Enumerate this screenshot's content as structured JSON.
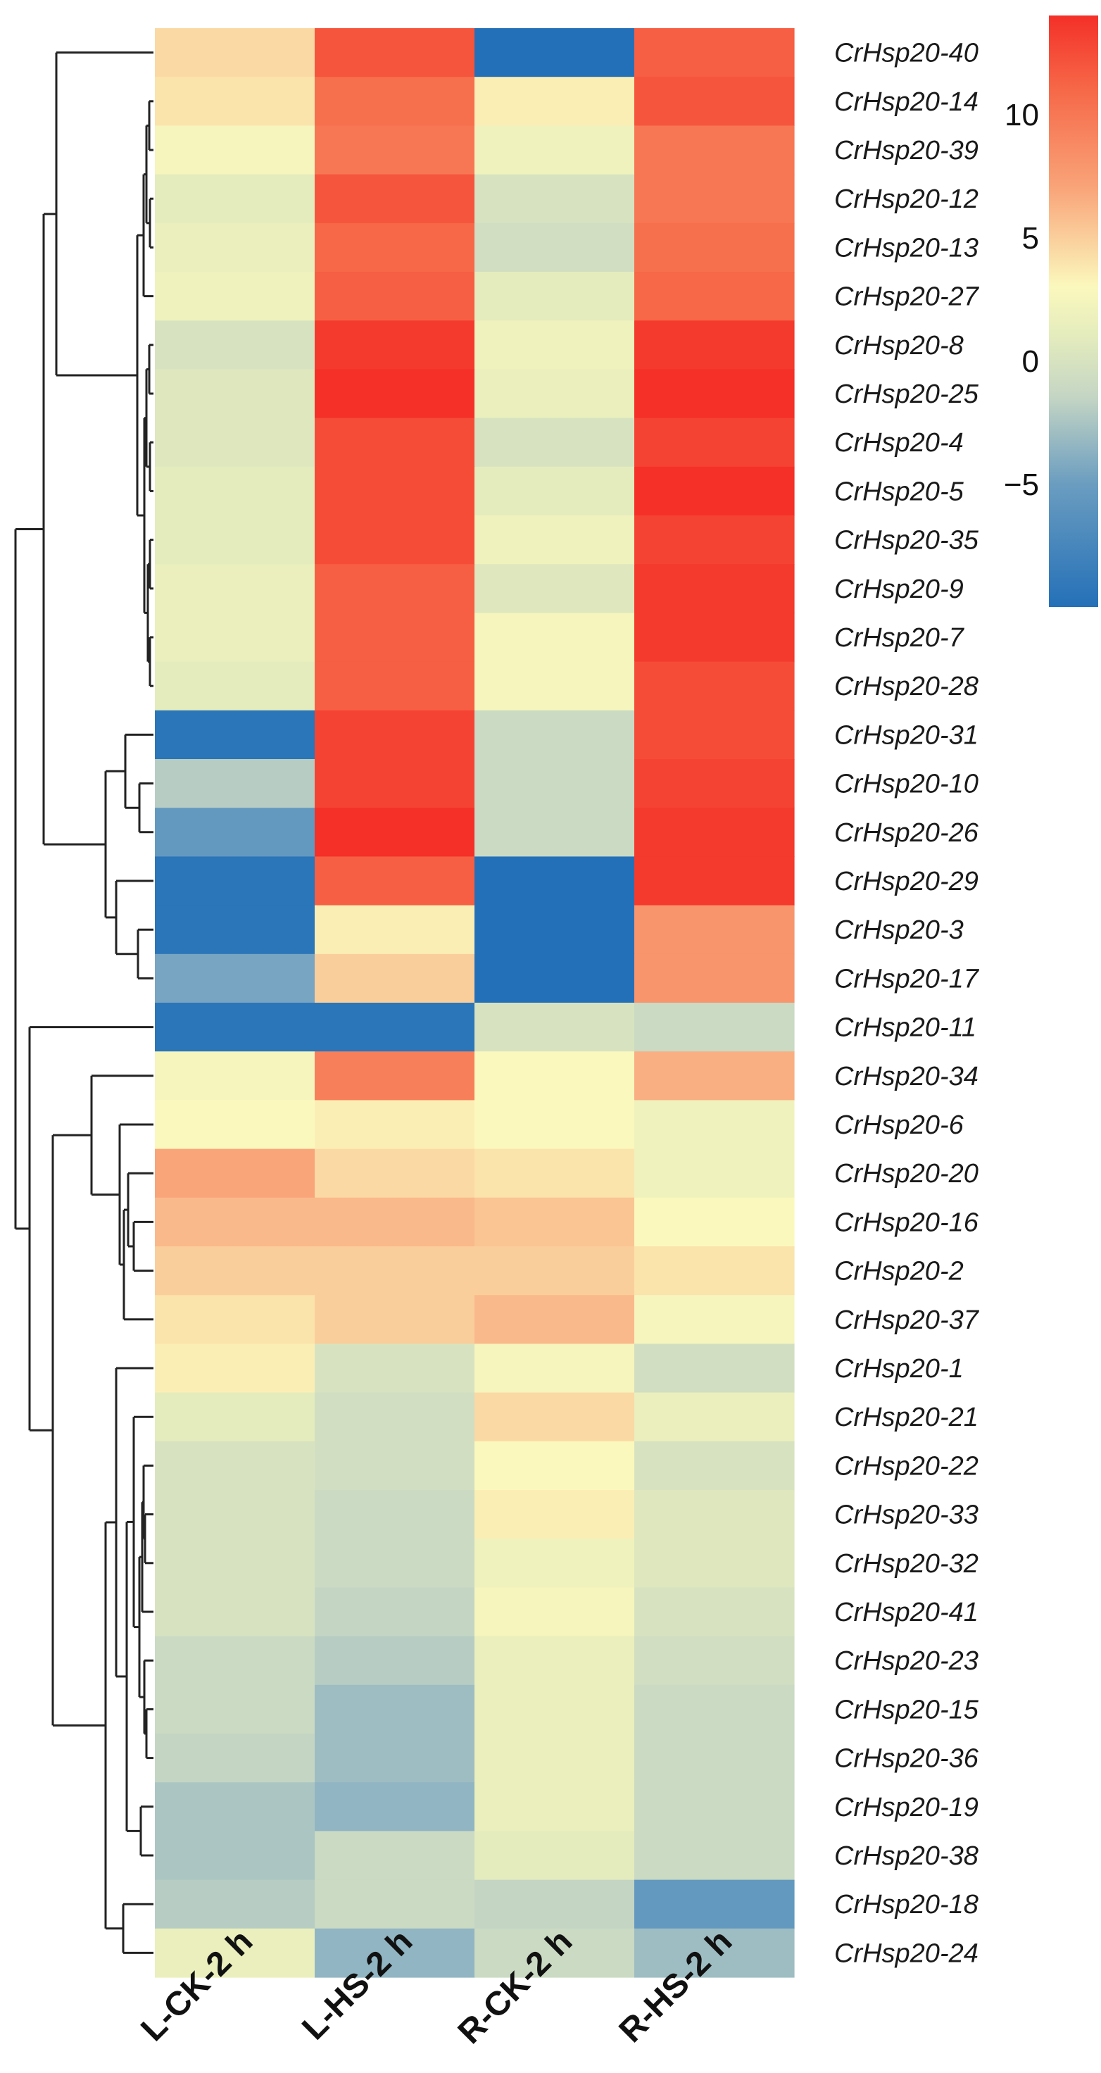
{
  "chart_data": {
    "type": "heatmap",
    "title": "",
    "columns": [
      "L-CK-2 h",
      "L-HS-2 h",
      "R-CK-2 h",
      "R-HS-2 h"
    ],
    "rows": [
      "CrHsp20-40",
      "CrHsp20-14",
      "CrHsp20-39",
      "CrHsp20-12",
      "CrHsp20-13",
      "CrHsp20-27",
      "CrHsp20-8",
      "CrHsp20-25",
      "CrHsp20-4",
      "CrHsp20-5",
      "CrHsp20-35",
      "CrHsp20-9",
      "CrHsp20-7",
      "CrHsp20-28",
      "CrHsp20-31",
      "CrHsp20-10",
      "CrHsp20-26",
      "CrHsp20-29",
      "CrHsp20-3",
      "CrHsp20-17",
      "CrHsp20-11",
      "CrHsp20-34",
      "CrHsp20-6",
      "CrHsp20-20",
      "CrHsp20-16",
      "CrHsp20-2",
      "CrHsp20-37",
      "CrHsp20-1",
      "CrHsp20-21",
      "CrHsp20-22",
      "CrHsp20-33",
      "CrHsp20-32",
      "CrHsp20-41",
      "CrHsp20-23",
      "CrHsp20-15",
      "CrHsp20-36",
      "CrHsp20-19",
      "CrHsp20-38",
      "CrHsp20-18",
      "CrHsp20-24"
    ],
    "values": [
      [
        4.5,
        12,
        -10,
        11.5
      ],
      [
        4,
        10.5,
        3.5,
        12
      ],
      [
        2.5,
        10,
        2,
        10
      ],
      [
        1,
        12,
        0,
        10
      ],
      [
        1.5,
        11,
        -0.5,
        10.5
      ],
      [
        2,
        11.5,
        1,
        11
      ],
      [
        0,
        13.5,
        2,
        13.5
      ],
      [
        0.5,
        14,
        1.5,
        14
      ],
      [
        0.5,
        12.5,
        0,
        13
      ],
      [
        1,
        12.5,
        1,
        14
      ],
      [
        1,
        12.5,
        2,
        13
      ],
      [
        1.5,
        11.5,
        0.5,
        13.5
      ],
      [
        1.5,
        11.5,
        2.5,
        13.5
      ],
      [
        1,
        11.5,
        2.5,
        12.5
      ],
      [
        -9.5,
        13,
        -1,
        12.5
      ],
      [
        -2,
        13,
        -1,
        13
      ],
      [
        -5.5,
        14,
        -1,
        13.5
      ],
      [
        -9.5,
        11.5,
        -10,
        13.5
      ],
      [
        -9.5,
        3.5,
        -10,
        8
      ],
      [
        -4.5,
        5,
        -10,
        8
      ],
      [
        -9.5,
        -9.5,
        0,
        -1
      ],
      [
        2.5,
        9.5,
        3,
        6.5
      ],
      [
        3,
        3.5,
        3,
        2
      ],
      [
        7,
        4.5,
        4,
        2
      ],
      [
        6,
        6,
        5.5,
        3
      ],
      [
        5,
        5,
        5,
        4
      ],
      [
        4,
        5,
        6,
        2.5
      ],
      [
        3.5,
        0,
        2.5,
        -0.5
      ],
      [
        1,
        -0.5,
        4.5,
        1.5
      ],
      [
        0,
        -0.5,
        3,
        0
      ],
      [
        0,
        -1,
        3.5,
        0.5
      ],
      [
        0,
        -1,
        2,
        0.5
      ],
      [
        0,
        -1.5,
        2.5,
        0
      ],
      [
        -1,
        -2,
        1.5,
        -0.5
      ],
      [
        -1,
        -3,
        1.5,
        -1
      ],
      [
        -1.5,
        -3,
        1.5,
        -1
      ],
      [
        -2.5,
        -3.5,
        1.5,
        -1
      ],
      [
        -2.5,
        -1,
        1,
        -1
      ],
      [
        -2,
        -1,
        -1.5,
        -5.5
      ],
      [
        1.5,
        -3.5,
        -1,
        -3
      ]
    ],
    "color_scale": {
      "min": -10,
      "max": 14,
      "stops": [
        {
          "value": -10,
          "color": "#2470b8"
        },
        {
          "value": -5,
          "color": "#6b9dc0"
        },
        {
          "value": -1.5,
          "color": "#c4d5c4"
        },
        {
          "value": 1,
          "color": "#e4ecbd"
        },
        {
          "value": 3,
          "color": "#fbf8bd"
        },
        {
          "value": 7,
          "color": "#f9a479"
        },
        {
          "value": 11,
          "color": "#f66848"
        },
        {
          "value": 14,
          "color": "#f43028"
        }
      ],
      "ticks": [
        10,
        5,
        0,
        -5
      ],
      "tick_labels": [
        "10",
        "5",
        "0",
        "−5"
      ]
    },
    "dendrogram": "row clustering tree drawn on the left",
    "legend": "top-right colorbar"
  }
}
